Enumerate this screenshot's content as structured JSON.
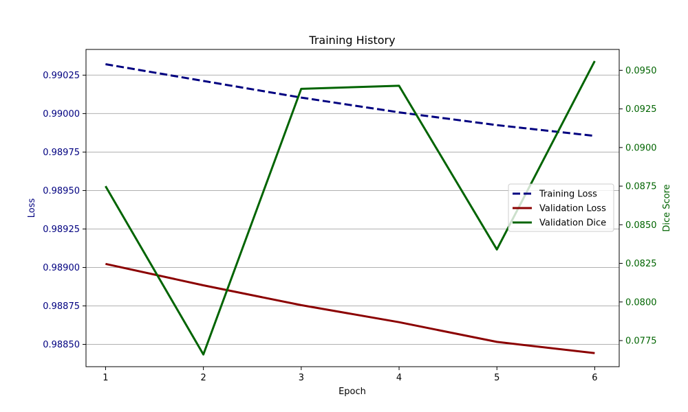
{
  "chart_data": {
    "type": "line",
    "title": "Training History",
    "xlabel": "Epoch",
    "ylabel_left": "Loss",
    "ylabel_right": "Dice Score",
    "x": [
      1,
      2,
      3,
      4,
      5,
      6
    ],
    "xlim": [
      0.8,
      6.25
    ],
    "ylim_left": [
      0.988355,
      0.990417
    ],
    "ylim_right": [
      0.07581,
      0.09635
    ],
    "x_ticks": [
      "1",
      "2",
      "3",
      "4",
      "5",
      "6"
    ],
    "y_ticks_left": [
      "0.98850",
      "0.98875",
      "0.98900",
      "0.98925",
      "0.98950",
      "0.98975",
      "0.99000",
      "0.99025"
    ],
    "y_ticks_right": [
      "0.0775",
      "0.0800",
      "0.0825",
      "0.0850",
      "0.0875",
      "0.0900",
      "0.0925",
      "0.0950"
    ],
    "grid": "horizontal (left axis)",
    "legend_position": "center-right",
    "series": [
      {
        "name": "Training Loss",
        "axis": "left",
        "style": "dashed",
        "color": "#000080",
        "values": [
          0.990321,
          0.990212,
          0.990104,
          0.990008,
          0.989925,
          0.989855
        ]
      },
      {
        "name": "Validation Loss",
        "axis": "left",
        "style": "solid",
        "color": "#8b0000",
        "values": [
          0.989023,
          0.988884,
          0.988755,
          0.988644,
          0.988516,
          0.988443
        ]
      },
      {
        "name": "Validation Dice",
        "axis": "right",
        "style": "solid",
        "color": "#006400",
        "values": [
          0.0875,
          0.0766,
          0.0938,
          0.094,
          0.0834,
          0.0956
        ]
      }
    ],
    "colors": {
      "left_axis": "#000080",
      "right_axis": "#006400",
      "grid": "#b0b0b0"
    }
  }
}
